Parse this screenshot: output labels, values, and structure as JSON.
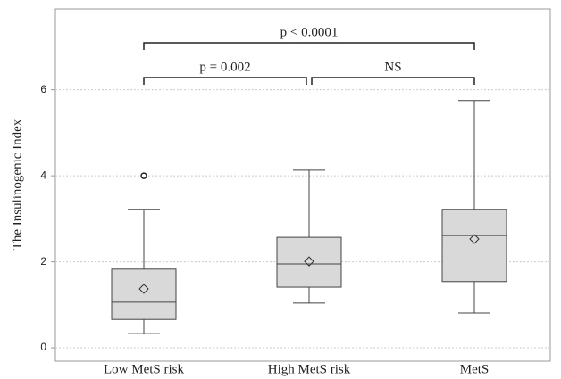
{
  "chart_data": {
    "type": "box",
    "ylabel": "The Insulinogenic Index",
    "categories": [
      "Low MetS risk",
      "High MetS risk",
      "MetS"
    ],
    "boxes": [
      {
        "whislo": 0.33,
        "q1": 0.66,
        "med": 1.06,
        "q3": 1.83,
        "whishi": 3.22,
        "mean": 1.37,
        "fliers": [
          4.0
        ]
      },
      {
        "whislo": 1.04,
        "q1": 1.41,
        "med": 1.95,
        "q3": 2.57,
        "whishi": 4.13,
        "mean": 2.01,
        "fliers": []
      },
      {
        "whislo": 0.81,
        "q1": 1.54,
        "med": 2.61,
        "q3": 3.22,
        "whishi": 5.75,
        "mean": 2.53,
        "fliers": []
      }
    ],
    "color": "#d9d9d9",
    "ylim": [
      -0.31,
      7.88
    ],
    "yticks": [
      0,
      2,
      4,
      6
    ],
    "grid": true,
    "brackets": [
      {
        "label": "p = 0.002",
        "from": "Low MetS risk",
        "to": "High MetS risk"
      },
      {
        "label": "NS",
        "from": "High MetS risk",
        "to": "MetS"
      },
      {
        "label": "p < 0.0001",
        "from": "Low MetS risk",
        "to": "MetS"
      }
    ]
  }
}
